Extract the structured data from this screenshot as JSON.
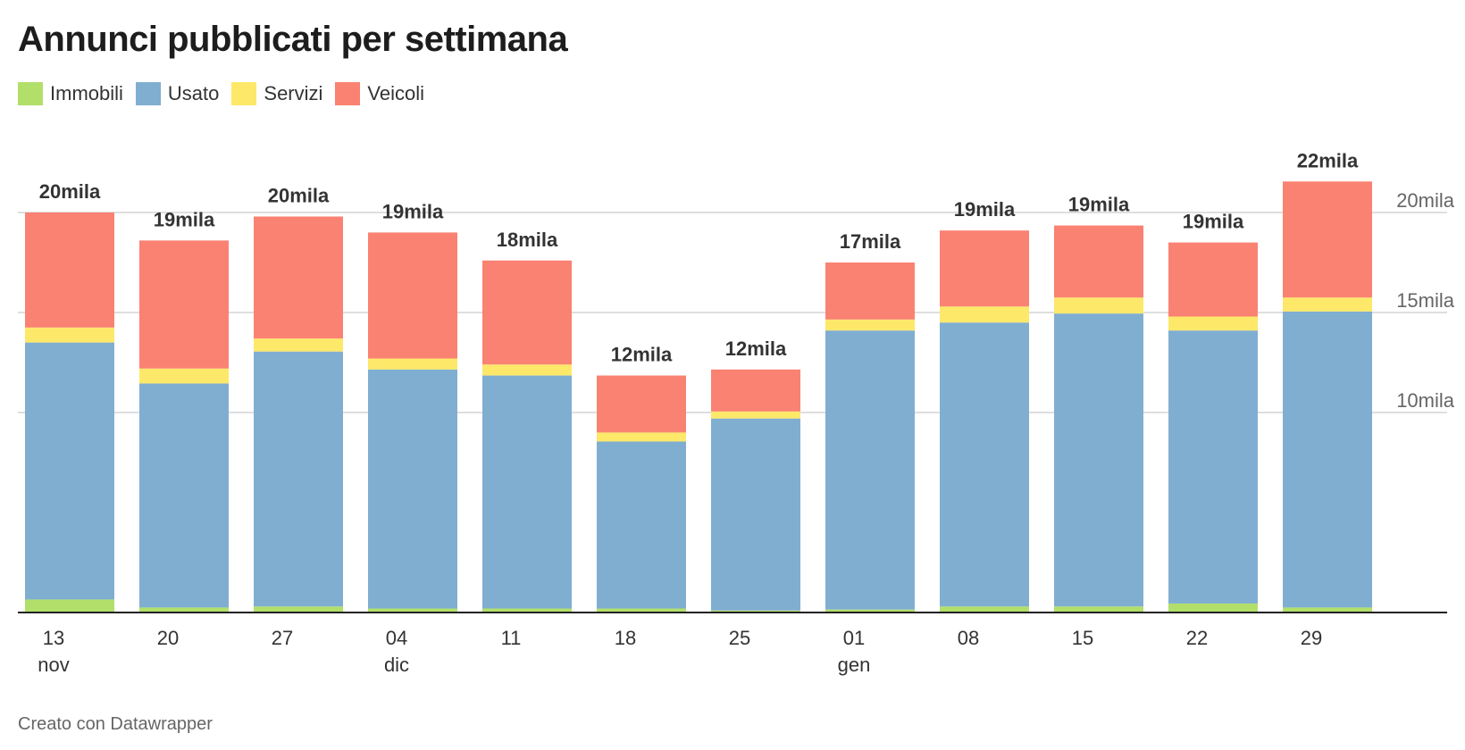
{
  "title": "Annunci pubblicati per settimana",
  "footer": "Creato con Datawrapper",
  "colors": {
    "Immobili": "#b2df6a",
    "Usato": "#80aed1",
    "Servizi": "#fde86a",
    "Veicoli": "#fa8272",
    "grid": "#d4d4d4",
    "axis": "#222222"
  },
  "chart_data": {
    "type": "bar",
    "stacked": true,
    "categories": [
      "13 nov",
      "20",
      "27",
      "04 dic",
      "11",
      "18",
      "25",
      "01 gen",
      "08",
      "15",
      "22",
      "29"
    ],
    "x_tick_labels": [
      {
        "day": "13",
        "month": "nov"
      },
      {
        "day": "20",
        "month": ""
      },
      {
        "day": "27",
        "month": ""
      },
      {
        "day": "04",
        "month": "dic"
      },
      {
        "day": "11",
        "month": ""
      },
      {
        "day": "18",
        "month": ""
      },
      {
        "day": "25",
        "month": ""
      },
      {
        "day": "01",
        "month": "gen"
      },
      {
        "day": "08",
        "month": ""
      },
      {
        "day": "15",
        "month": ""
      },
      {
        "day": "22",
        "month": ""
      },
      {
        "day": "29",
        "month": ""
      }
    ],
    "series": [
      {
        "name": "Immobili",
        "values": [
          650,
          250,
          300,
          200,
          200,
          200,
          100,
          150,
          300,
          300,
          450,
          250
        ]
      },
      {
        "name": "Usato",
        "values": [
          12850,
          11200,
          12750,
          11950,
          11650,
          8350,
          9600,
          13950,
          14200,
          14650,
          13650,
          14800
        ]
      },
      {
        "name": "Servizi",
        "values": [
          750,
          750,
          650,
          550,
          550,
          450,
          350,
          550,
          800,
          800,
          700,
          700
        ]
      },
      {
        "name": "Veicoli",
        "values": [
          5750,
          6400,
          6100,
          6300,
          5200,
          2850,
          2100,
          2850,
          3800,
          3600,
          3700,
          5800
        ]
      }
    ],
    "totals_labels": [
      "20mila",
      "19mila",
      "20mila",
      "19mila",
      "18mila",
      "12mila",
      "12mila",
      "17mila",
      "19mila",
      "19mila",
      "19mila",
      "22mila"
    ],
    "y_ticks": [
      {
        "value": 10000,
        "label": "10mila"
      },
      {
        "value": 15000,
        "label": "15mila"
      },
      {
        "value": 20000,
        "label": "20mila"
      }
    ],
    "ylim": [
      0,
      22000
    ],
    "grid": true,
    "legend_position": "top-left"
  }
}
